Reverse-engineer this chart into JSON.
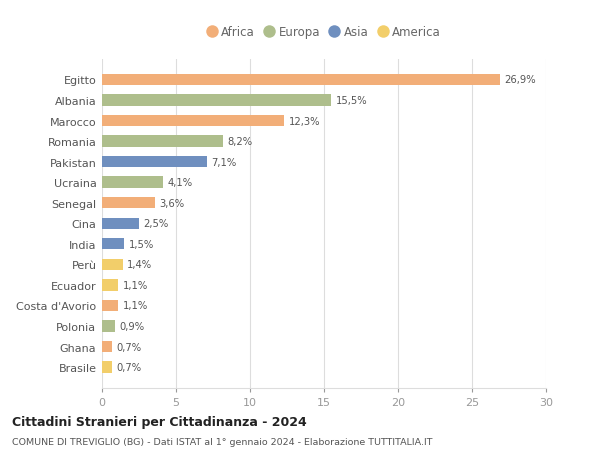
{
  "countries": [
    "Egitto",
    "Albania",
    "Marocco",
    "Romania",
    "Pakistan",
    "Ucraina",
    "Senegal",
    "Cina",
    "India",
    "Perù",
    "Ecuador",
    "Costa d'Avorio",
    "Polonia",
    "Ghana",
    "Brasile"
  ],
  "values": [
    26.9,
    15.5,
    12.3,
    8.2,
    7.1,
    4.1,
    3.6,
    2.5,
    1.5,
    1.4,
    1.1,
    1.1,
    0.9,
    0.7,
    0.7
  ],
  "labels": [
    "26,9%",
    "15,5%",
    "12,3%",
    "8,2%",
    "7,1%",
    "4,1%",
    "3,6%",
    "2,5%",
    "1,5%",
    "1,4%",
    "1,1%",
    "1,1%",
    "0,9%",
    "0,7%",
    "0,7%"
  ],
  "continents": [
    "Africa",
    "Europa",
    "Africa",
    "Europa",
    "Asia",
    "Europa",
    "Africa",
    "Asia",
    "Asia",
    "America",
    "America",
    "Africa",
    "Europa",
    "Africa",
    "America"
  ],
  "colors": {
    "Africa": "#F2AE78",
    "Europa": "#AEBE8C",
    "Asia": "#6F8FBF",
    "America": "#F2CE6A"
  },
  "legend_order": [
    "Africa",
    "Europa",
    "Asia",
    "America"
  ],
  "xlim": [
    0,
    30
  ],
  "xticks": [
    0,
    5,
    10,
    15,
    20,
    25,
    30
  ],
  "title": "Cittadini Stranieri per Cittadinanza - 2024",
  "subtitle": "COMUNE DI TREVIGLIO (BG) - Dati ISTAT al 1° gennaio 2024 - Elaborazione TUTTITALIA.IT",
  "bg_color": "#ffffff",
  "grid_color": "#dddddd",
  "bar_height": 0.55
}
